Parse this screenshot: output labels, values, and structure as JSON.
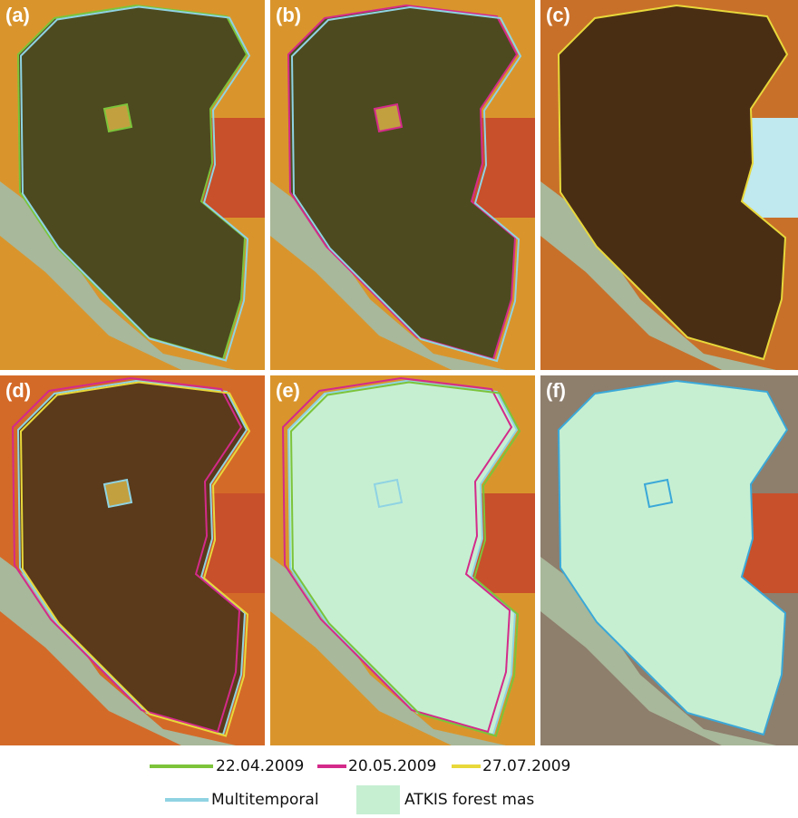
{
  "panels": [
    {
      "label": "(a)"
    },
    {
      "label": "(b)"
    },
    {
      "label": "(c)"
    },
    {
      "label": "(d)"
    },
    {
      "label": "(e)"
    },
    {
      "label": "(f)"
    }
  ],
  "legend": [
    {
      "label": "22.04.2009",
      "color": "#7cc43a"
    },
    {
      "label": "20.05.2009",
      "color": "#d42a8a"
    },
    {
      "label": "27.07.2009",
      "color": "#e8d83a"
    },
    {
      "label": "Multitemporal",
      "color": "#8fd3e3"
    },
    {
      "label": "ATKIS forest mas",
      "color": "#c6efd2"
    }
  ]
}
